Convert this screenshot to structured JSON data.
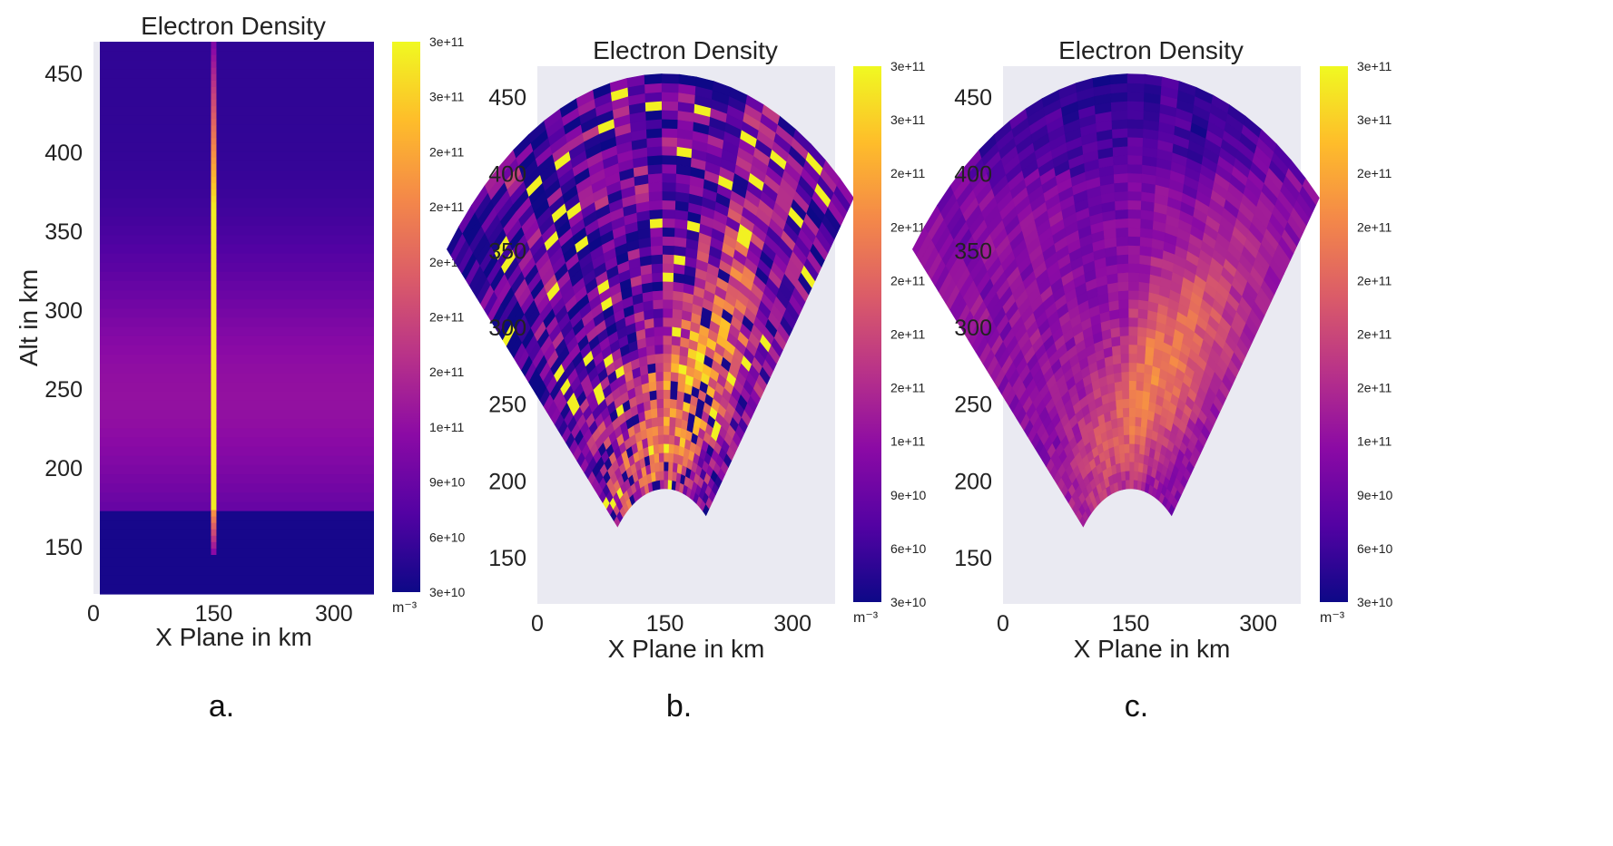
{
  "chart_data": [
    {
      "type": "heatmap",
      "title": "Electron Density",
      "xlabel": "X Plane in km",
      "ylabel": "Alt in km",
      "xticks": [
        0,
        150,
        300
      ],
      "yticks": [
        150,
        200,
        250,
        300,
        350,
        400,
        450
      ],
      "xlim": [
        0,
        350
      ],
      "ylim": [
        120,
        470
      ],
      "colorbar_ticks": [
        "3e+10",
        "6e+10",
        "9e+10",
        "1e+11",
        "2e+11",
        "2e+11",
        "2e+11",
        "2e+11",
        "2e+11",
        "3e+11",
        "3e+11"
      ],
      "colorbar_unit": "m⁻³",
      "vmin": 30000000000,
      "vmax": 300000000000,
      "colormap": "plasma",
      "beam_x": 150,
      "beam_alt_range": [
        145,
        470
      ],
      "panel_label": "a."
    },
    {
      "type": "heatmap",
      "title": "Electron Density",
      "xlabel": "X Plane in km",
      "ylabel": "",
      "xticks": [
        0,
        150,
        300
      ],
      "yticks": [
        150,
        200,
        250,
        300,
        350,
        400,
        450
      ],
      "xlim": [
        0,
        350
      ],
      "ylim": [
        120,
        470
      ],
      "colorbar_ticks": [
        "3e+10",
        "6e+10",
        "9e+10",
        "1e+11",
        "2e+11",
        "2e+11",
        "2e+11",
        "2e+11",
        "2e+11",
        "3e+11",
        "3e+11"
      ],
      "colorbar_unit": "m⁻³",
      "vmin": 30000000000,
      "vmax": 300000000000,
      "colormap": "plasma",
      "fan_origin_km": [
        150,
        120
      ],
      "fan_angle_deg": [
        -48,
        40
      ],
      "fan_radius_km": [
        75,
        345
      ],
      "panel_label": "b."
    },
    {
      "type": "heatmap",
      "title": "Electron Density",
      "xlabel": "X Plane in km",
      "ylabel": "",
      "xticks": [
        0,
        150,
        300
      ],
      "yticks": [
        150,
        200,
        250,
        300,
        350,
        400,
        450
      ],
      "xlim": [
        0,
        350
      ],
      "ylim": [
        120,
        470
      ],
      "colorbar_ticks": [
        "3e+10",
        "6e+10",
        "9e+10",
        "1e+11",
        "2e+11",
        "2e+11",
        "2e+11",
        "2e+11",
        "2e+11",
        "3e+11",
        "3e+11"
      ],
      "colorbar_unit": "m⁻³",
      "vmin": 30000000000,
      "vmax": 300000000000,
      "colormap": "plasma",
      "fan_origin_km": [
        150,
        120
      ],
      "fan_angle_deg": [
        -48,
        40
      ],
      "fan_radius_km": [
        75,
        345
      ],
      "panel_label": "c."
    }
  ],
  "colors": {
    "axes_background": "#eaeaf2",
    "plasma_stops": [
      "#0d0887",
      "#5302a3",
      "#8b0aa5",
      "#b83289",
      "#db5c68",
      "#f48849",
      "#febd2a",
      "#f0f921"
    ]
  }
}
